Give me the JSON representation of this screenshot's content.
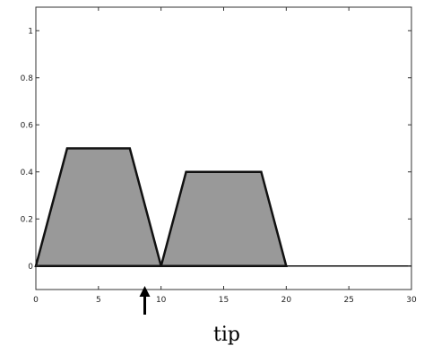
{
  "chart_data": {
    "type": "area",
    "title": "",
    "xlabel": "tip",
    "ylabel": "",
    "xlim": [
      0,
      30
    ],
    "ylim": [
      -0.1,
      1.1
    ],
    "grid": false,
    "legend": "none",
    "x_ticks": [
      "0",
      "5",
      "10",
      "15",
      "20",
      "25",
      "30"
    ],
    "y_ticks": [
      "0",
      "0.2",
      "0.4",
      "0.6",
      "0.8",
      "1"
    ],
    "series": [
      {
        "shape": "trapezoid",
        "points": [
          [
            0,
            0
          ],
          [
            2.5,
            0.5
          ],
          [
            7.5,
            0.5
          ],
          [
            10,
            0
          ]
        ]
      },
      {
        "shape": "trapezoid",
        "points": [
          [
            10,
            0
          ],
          [
            12,
            0.4
          ],
          [
            18,
            0.4
          ],
          [
            20,
            0
          ]
        ]
      }
    ],
    "baseline": [
      [
        0,
        0
      ],
      [
        30,
        0
      ]
    ],
    "annotations": [
      {
        "type": "arrow",
        "direction": "up",
        "x": 8.7
      }
    ],
    "colors": {
      "fill": "#999999",
      "stroke": "#111111",
      "axis": "#333333"
    }
  }
}
